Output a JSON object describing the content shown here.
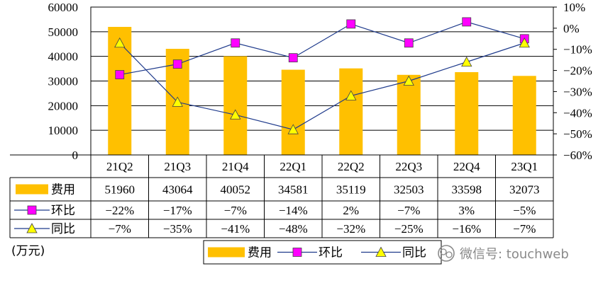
{
  "chart_data": {
    "type": "bar",
    "categories": [
      "21Q2",
      "21Q3",
      "21Q4",
      "22Q1",
      "22Q2",
      "22Q3",
      "22Q4",
      "23Q1"
    ],
    "series": [
      {
        "name": "费用",
        "kind": "bar",
        "axis": "left",
        "color": "#FFC000",
        "values": [
          51960,
          43064,
          40052,
          34581,
          35119,
          32503,
          33598,
          32073
        ]
      },
      {
        "name": "环比",
        "kind": "line",
        "axis": "right",
        "color": "#1F3B8C",
        "marker": "square",
        "marker_color": "#FF00FF",
        "values": [
          -22,
          -17,
          -7,
          -14,
          2,
          -7,
          3,
          -5
        ]
      },
      {
        "name": "同比",
        "kind": "line",
        "axis": "right",
        "color": "#1F3B8C",
        "marker": "triangle",
        "marker_color": "#FFFF00",
        "values": [
          -7,
          -35,
          -41,
          -48,
          -32,
          -25,
          -16,
          -7
        ]
      }
    ],
    "table_rows": [
      {
        "name": "费用",
        "values": [
          "51960",
          "43064",
          "40052",
          "34581",
          "35119",
          "32503",
          "33598",
          "32073"
        ]
      },
      {
        "name": "环比",
        "values": [
          "−22%",
          "−17%",
          "−7%",
          "−14%",
          "2%",
          "−7%",
          "3%",
          "−5%"
        ]
      },
      {
        "name": "同比",
        "values": [
          "−7%",
          "−35%",
          "−41%",
          "−48%",
          "−32%",
          "−25%",
          "−16%",
          "−7%"
        ]
      }
    ],
    "y_left": {
      "min": 0,
      "max": 60000,
      "ticks": [
        "0",
        "10000",
        "20000",
        "30000",
        "40000",
        "50000",
        "60000"
      ]
    },
    "y_right": {
      "min": -60,
      "max": 10,
      "ticks": [
        "−60%",
        "−50%",
        "−40%",
        "−30%",
        "−20%",
        "−10%",
        "0%",
        "10%"
      ]
    },
    "unit_label": "(万元)",
    "legend": [
      "费用",
      "环比",
      "同比"
    ],
    "legend_position": "bottom-center",
    "grid": true
  },
  "watermark": "微信号: touchweb"
}
